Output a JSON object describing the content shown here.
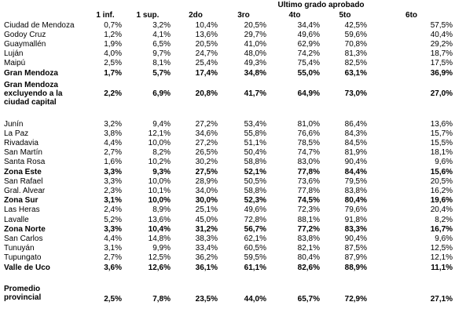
{
  "table": {
    "title": "Ultimo grado aprobado",
    "columns": [
      "1 inf.",
      "1 sup.",
      "2do",
      "3ro",
      "4to",
      "5to",
      "6to"
    ],
    "sections": [
      {
        "rows": [
          {
            "label": "Ciudad de Mendoza",
            "values": [
              "0,7%",
              "3,2%",
              "10,4%",
              "20,5%",
              "34,4%",
              "42,5%",
              "57,5%"
            ]
          },
          {
            "label": "Godoy Cruz",
            "values": [
              "1,2%",
              "4,1%",
              "13,6%",
              "29,7%",
              "49,6%",
              "59,6%",
              "40,4%"
            ]
          },
          {
            "label": "Guaymallén",
            "values": [
              "1,9%",
              "6,5%",
              "20,5%",
              "41,0%",
              "62,9%",
              "70,8%",
              "29,2%"
            ]
          },
          {
            "label": "Luján",
            "values": [
              "4,0%",
              "9,7%",
              "24,7%",
              "48,0%",
              "74,2%",
              "81,3%",
              "18,7%"
            ]
          },
          {
            "label": "Maipú",
            "values": [
              "2,5%",
              "8,1%",
              "25,4%",
              "49,3%",
              "75,4%",
              "82,5%",
              "17,5%"
            ]
          },
          {
            "label": "Gran Mendoza",
            "bold": true,
            "values": [
              "1,7%",
              "5,7%",
              "17,4%",
              "34,8%",
              "55,0%",
              "63,1%",
              "36,9%"
            ]
          },
          {
            "label": "Gran Mendoza excluyendo a la ciudad capital",
            "bold": true,
            "values": [
              "2,2%",
              "6,9%",
              "20,8%",
              "41,7%",
              "64,9%",
              "73,0%",
              "27,0%"
            ]
          }
        ]
      },
      {
        "rows": [
          {
            "label": "Junín",
            "values": [
              "3,2%",
              "9,4%",
              "27,2%",
              "53,4%",
              "81,0%",
              "86,4%",
              "13,6%"
            ]
          },
          {
            "label": "La Paz",
            "values": [
              "3,8%",
              "12,1%",
              "34,6%",
              "55,8%",
              "76,6%",
              "84,3%",
              "15,7%"
            ]
          },
          {
            "label": "Rivadavia",
            "values": [
              "4,4%",
              "10,0%",
              "27,2%",
              "51,1%",
              "78,5%",
              "84,5%",
              "15,5%"
            ]
          },
          {
            "label": "San Martín",
            "values": [
              "2,7%",
              "8,2%",
              "26,5%",
              "50,4%",
              "74,7%",
              "81,9%",
              "18,1%"
            ]
          },
          {
            "label": "Santa Rosa",
            "values": [
              "1,6%",
              "10,2%",
              "30,2%",
              "58,8%",
              "83,0%",
              "90,4%",
              "9,6%"
            ]
          },
          {
            "label": "Zona Este",
            "bold": true,
            "values": [
              "3,3%",
              "9,3%",
              "27,5%",
              "52,1%",
              "77,8%",
              "84,4%",
              "15,6%"
            ]
          },
          {
            "label": "San Rafael",
            "values": [
              "3,3%",
              "10,0%",
              "28,9%",
              "50,5%",
              "73,6%",
              "79,5%",
              "20,5%"
            ]
          },
          {
            "label": "Gral. Alvear",
            "values": [
              "2,3%",
              "10,1%",
              "34,0%",
              "58,8%",
              "77,8%",
              "83,8%",
              "16,2%"
            ]
          },
          {
            "label": "Zona Sur",
            "bold": true,
            "values": [
              "3,1%",
              "10,0%",
              "30,0%",
              "52,3%",
              "74,5%",
              "80,4%",
              "19,6%"
            ]
          },
          {
            "label": "Las Heras",
            "values": [
              "2,4%",
              "8,9%",
              "25,1%",
              "49,6%",
              "72,3%",
              "79,6%",
              "20,4%"
            ]
          },
          {
            "label": "Lavalle",
            "values": [
              "5,2%",
              "13,6%",
              "45,0%",
              "72,8%",
              "88,1%",
              "91,8%",
              "8,2%"
            ]
          },
          {
            "label": "Zona Norte",
            "bold": true,
            "values": [
              "3,3%",
              "10,4%",
              "31,2%",
              "56,7%",
              "77,2%",
              "83,3%",
              "16,7%"
            ]
          },
          {
            "label": "San Carlos",
            "values": [
              "4,4%",
              "14,8%",
              "38,3%",
              "62,1%",
              "83,8%",
              "90,4%",
              "9,6%"
            ]
          },
          {
            "label": "Tunuyán",
            "values": [
              "3,1%",
              "9,9%",
              "33,4%",
              "60,5%",
              "82,1%",
              "87,5%",
              "12,5%"
            ]
          },
          {
            "label": "Tupungato",
            "values": [
              "2,7%",
              "12,5%",
              "36,2%",
              "59,5%",
              "80,4%",
              "87,9%",
              "12,1%"
            ]
          },
          {
            "label": "Valle de Uco",
            "bold": true,
            "values": [
              "3,6%",
              "12,6%",
              "36,1%",
              "61,1%",
              "82,6%",
              "88,9%",
              "11,1%"
            ]
          }
        ]
      },
      {
        "rows": [
          {
            "label": "Promedio provincial",
            "bold": true,
            "values": [
              "2,5%",
              "7,8%",
              "23,5%",
              "44,0%",
              "65,7%",
              "72,9%",
              "27,1%"
            ]
          }
        ]
      }
    ]
  }
}
